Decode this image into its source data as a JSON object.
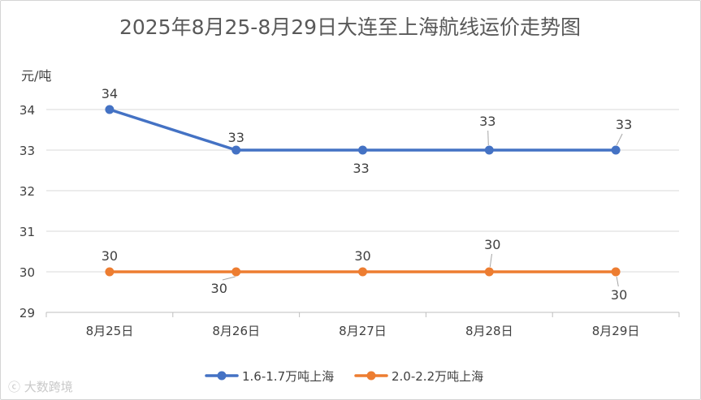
{
  "chart_data": {
    "type": "line",
    "title": "2025年8月25-8月29日大连至上海航线运价走势图",
    "ylabel": "元/吨",
    "xlabel": "",
    "categories": [
      "8月25日",
      "8月26日",
      "8月27日",
      "8月28日",
      "8月29日"
    ],
    "ylim": [
      29,
      34
    ],
    "yticks": [
      29,
      30,
      31,
      32,
      33,
      34
    ],
    "grid": true,
    "legend_position": "bottom",
    "series": [
      {
        "name": "1.6-1.7万吨上海",
        "values": [
          34,
          33,
          33,
          33,
          33
        ],
        "color": "#4472c4"
      },
      {
        "name": "2.0-2.2万吨上海",
        "values": [
          30,
          30,
          30,
          30,
          30
        ],
        "color": "#ed7d31"
      }
    ]
  },
  "watermark": "大数跨境"
}
